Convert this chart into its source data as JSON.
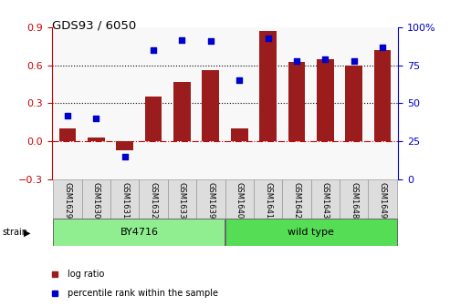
{
  "title": "GDS93 / 6050",
  "samples": [
    "GSM1629",
    "GSM1630",
    "GSM1631",
    "GSM1632",
    "GSM1633",
    "GSM1639",
    "GSM1640",
    "GSM1641",
    "GSM1642",
    "GSM1643",
    "GSM1648",
    "GSM1649"
  ],
  "log_ratio": [
    0.1,
    0.03,
    -0.07,
    0.35,
    0.47,
    0.56,
    0.1,
    0.87,
    0.63,
    0.65,
    0.6,
    0.72
  ],
  "percentile": [
    42,
    40,
    15,
    85,
    92,
    91,
    65,
    93,
    78,
    79,
    78,
    87
  ],
  "bar_color": "#9B1C1C",
  "dot_color": "#0000CC",
  "dashed_line_color": "#CC0000",
  "strain_groups": [
    {
      "label": "BY4716",
      "start": 0,
      "end": 6,
      "color": "#90EE90"
    },
    {
      "label": "wild type",
      "start": 6,
      "end": 12,
      "color": "#55DD55"
    }
  ],
  "ylim_left": [
    -0.3,
    0.9
  ],
  "ylim_right": [
    0,
    100
  ],
  "yticks_left": [
    -0.3,
    0.0,
    0.3,
    0.6,
    0.9
  ],
  "yticks_right": [
    0,
    25,
    50,
    75,
    100
  ],
  "hlines": [
    0.3,
    0.6
  ],
  "legend_items": [
    {
      "label": "log ratio",
      "color": "#9B1C1C"
    },
    {
      "label": "percentile rank within the sample",
      "color": "#0000CC"
    }
  ]
}
